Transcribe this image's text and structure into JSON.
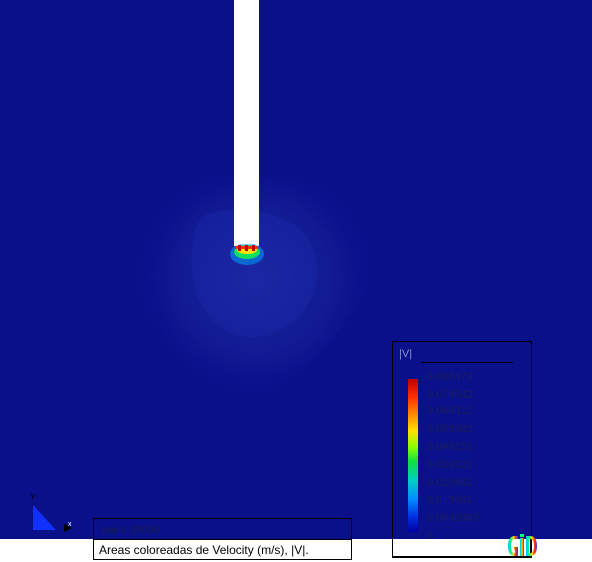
{
  "view": {
    "background_color": "#0a0f8a",
    "object_color": "#ffffff"
  },
  "status": {
    "step_label": "paso: 10000",
    "caption": "Areas coloreadas de Velocity (m/s), |V|."
  },
  "legend": {
    "title": "|V|",
    "values": [
      "0.088473",
      "0.078642",
      "0.068812",
      "0.058982",
      "0.049151",
      "0.039321",
      "0.029491",
      "0.019661",
      "0.0098303",
      "0"
    ],
    "colors": {
      "max": "#c00000",
      "mid": "#10e040",
      "min": "#0000a0"
    }
  },
  "axes": {
    "x_label": "x",
    "y_label": "y"
  },
  "logo": {
    "icon": "gid-logo-icon",
    "text": "GiD"
  }
}
